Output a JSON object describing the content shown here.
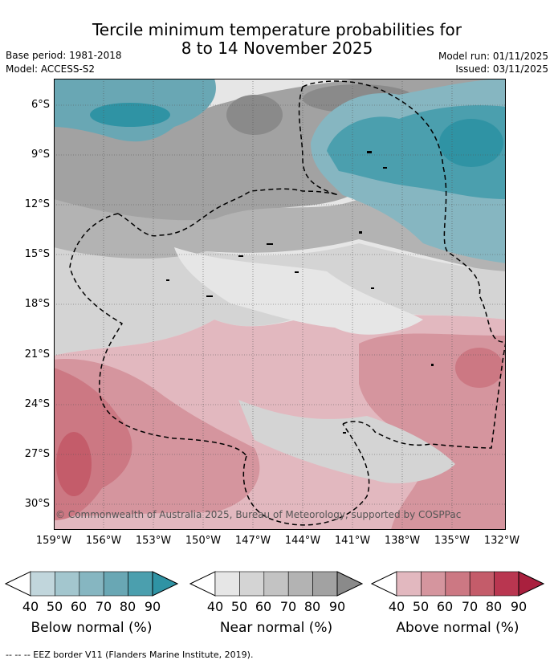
{
  "title_line1": "Tercile minimum temperature probabilities for",
  "title_line2": "8 to 14 November 2025",
  "base_period": "Base period: 1981-2018",
  "model": "Model: ACCESS-S2",
  "model_run": "Model run: 01/11/2025",
  "issued": "Issued: 03/11/2025",
  "lat_labels": [
    "6°S",
    "9°S",
    "12°S",
    "15°S",
    "18°S",
    "21°S",
    "24°S",
    "27°S",
    "30°S"
  ],
  "lon_labels": [
    "159°W",
    "156°W",
    "153°W",
    "150°W",
    "147°W",
    "144°W",
    "141°W",
    "138°W",
    "135°W",
    "132°W"
  ],
  "copyright": "© Commonwealth of Australia 2025, Bureau of Meteorology, supported by COSPPac",
  "colorbars": [
    {
      "title": "Below normal (%)",
      "ticks": [
        "40",
        "50",
        "60",
        "70",
        "80",
        "90"
      ],
      "colors": [
        "#ffffff",
        "#c1d6dc",
        "#a3c6ce",
        "#86b6c1",
        "#69a7b4",
        "#4b9fae",
        "#2f93a4"
      ]
    },
    {
      "title": "Near normal (%)",
      "ticks": [
        "40",
        "50",
        "60",
        "70",
        "80",
        "90"
      ],
      "colors": [
        "#ffffff",
        "#e6e6e6",
        "#d4d4d4",
        "#c3c3c3",
        "#b3b3b3",
        "#a2a2a2",
        "#8a8a8a"
      ]
    },
    {
      "title": "Above normal (%)",
      "ticks": [
        "40",
        "50",
        "60",
        "70",
        "80",
        "90"
      ],
      "colors": [
        "#ffffff",
        "#e2b8bf",
        "#d5959e",
        "#cc7883",
        "#c45c6a",
        "#b93650",
        "#a9203e"
      ]
    }
  ],
  "eez_legend": "-- -- -- EEZ border V11 (Flanders Marine Institute, 2019)."
}
